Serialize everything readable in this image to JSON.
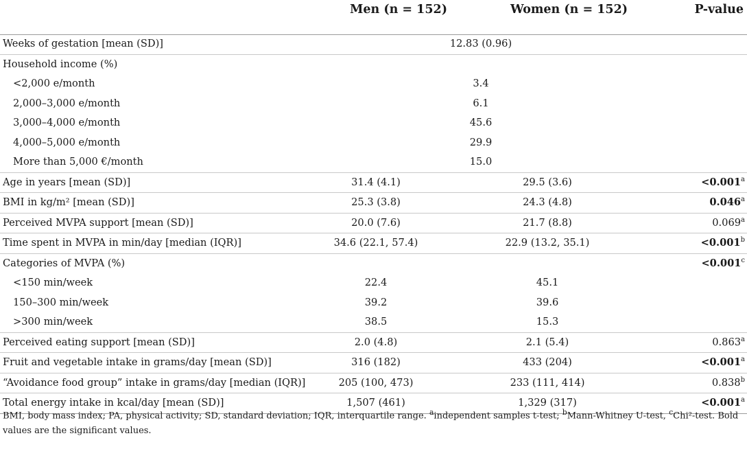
{
  "header": {
    "men": "Men (n = 152)",
    "women": "Women (n = 152)",
    "p": "P-value"
  },
  "rows": [
    {
      "label": "Weeks of gestation [mean (SD)]",
      "span": "12.83 (0.96)"
    },
    {
      "label": "Household income (%)"
    },
    {
      "label": "<2,000 e/month",
      "span": "3.4"
    },
    {
      "label": "2,000–3,000 e/month",
      "span": "6.1"
    },
    {
      "label": "3,000–4,000 e/month",
      "span": "45.6"
    },
    {
      "label": "4,000–5,000 e/month",
      "span": "29.9"
    },
    {
      "label": "More than 5,000 €/month",
      "span": "15.0"
    },
    {
      "label": "Age in years [mean (SD)]",
      "men": "31.4 (4.1)",
      "women": "29.5 (3.6)",
      "p": "<0.001",
      "sup": "a"
    },
    {
      "label": "BMI in kg/m² [mean (SD)]",
      "men": "25.3 (3.8)",
      "women": "24.3 (4.8)",
      "p": "0.046",
      "sup": "a"
    },
    {
      "label": "Perceived MVPA support [mean (SD)]",
      "men": "20.0 (7.6)",
      "women": "21.7 (8.8)",
      "p": "0.069",
      "sup": "a"
    },
    {
      "label": "Time spent in MVPA in min/day [median (IQR)]",
      "men": "34.6 (22.1, 57.4)",
      "women": "22.9 (13.2, 35.1)",
      "p": "<0.001",
      "sup": "b"
    },
    {
      "label": "Categories of MVPA (%)",
      "p": "<0.001",
      "sup": "c"
    },
    {
      "label": "<150 min/week",
      "men": "22.4",
      "women": "45.1"
    },
    {
      "label": "150–300 min/week",
      "men": "39.2",
      "women": "39.6"
    },
    {
      "label": ">300 min/week",
      "men": "38.5",
      "women": "15.3"
    },
    {
      "label": "Perceived eating support [mean (SD)]",
      "men": "2.0 (4.8)",
      "women": "2.1 (5.4)",
      "p": "0.863",
      "sup": "a"
    },
    {
      "label": "Fruit and vegetable intake in grams/day [mean (SD)]",
      "men": "316 (182)",
      "women": "433 (204)",
      "p": "<0.001",
      "sup": "a"
    },
    {
      "label": "“Avoidance food group” intake in grams/day [median (IQR)]",
      "men": "205 (100, 473)",
      "women": "233 (111, 414)",
      "p": "0.838",
      "sup": "b"
    },
    {
      "label": "Total energy intake in kcal/day [mean (SD)]",
      "men": "1,507 (461)",
      "women": "1,329 (317)",
      "p": "<0.001",
      "sup": "a"
    }
  ],
  "footnote": {
    "p1": "BMI, body mass index; PA, physical activity; SD, standard deviation; IQR, interquartile range. ",
    "sup_a": "a",
    "p2": "independent samples t-test; ",
    "sup_b": "b",
    "p3": "Mann-Whitney U-test, ",
    "sup_c": "c",
    "p4": "Chi²-test. Bold values are the significant values."
  }
}
